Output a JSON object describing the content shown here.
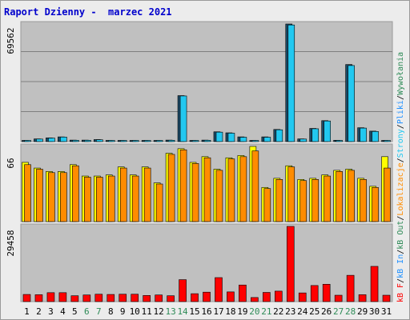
{
  "title": "Raport Dzienny -  marzec 2021",
  "chart_data": [
    {
      "type": "bar",
      "panel": "top",
      "ytick": "69562",
      "ylim": [
        0,
        69562
      ],
      "categories": [
        "1",
        "2",
        "3",
        "4",
        "5",
        "6",
        "7",
        "8",
        "9",
        "10",
        "11",
        "12",
        "13",
        "14",
        "15",
        "16",
        "17",
        "18",
        "19",
        "20",
        "21",
        "22",
        "23",
        "24",
        "25",
        "26",
        "27",
        "28",
        "29",
        "30",
        "31"
      ],
      "category_colors": [
        "#000000",
        "#000000",
        "#000000",
        "#000000",
        "#000000",
        "#2e8b57",
        "#2e8b57",
        "#000000",
        "#000000",
        "#000000",
        "#000000",
        "#000000",
        "#2e8b57",
        "#2e8b57",
        "#000000",
        "#000000",
        "#000000",
        "#000000",
        "#000000",
        "#2e8b57",
        "#2e8b57",
        "#000000",
        "#000000",
        "#000000",
        "#000000",
        "#000000",
        "#2e8b57",
        "#2e8b57",
        "#000000",
        "#000000",
        "#000000"
      ],
      "series": [
        {
          "name": "Wywołania",
          "color": "#1a4a66",
          "values": [
            600,
            1600,
            2200,
            2800,
            900,
            900,
            1200,
            500,
            500,
            500,
            500,
            600,
            900,
            27200,
            600,
            900,
            5800,
            5200,
            2800,
            600,
            2800,
            7200,
            69562,
            1600,
            7800,
            12400,
            800,
            45600,
            8200,
            6200,
            600
          ]
        },
        {
          "name": "Strony",
          "color": "#22c8f0",
          "values": [
            500,
            1500,
            2100,
            2700,
            800,
            800,
            1100,
            400,
            400,
            400,
            400,
            500,
            800,
            27000,
            500,
            800,
            5600,
            5000,
            2600,
            500,
            2600,
            7000,
            69000,
            1500,
            7600,
            12200,
            700,
            45000,
            8000,
            6000,
            500
          ]
        }
      ]
    },
    {
      "type": "bar",
      "panel": "middle",
      "ytick": "66",
      "ylim": [
        0,
        66
      ],
      "series": [
        {
          "name": "Pliki",
          "color": "#ffff00",
          "values": [
            52,
            47,
            44,
            44,
            50,
            40,
            40,
            41,
            48,
            41,
            48,
            34,
            60,
            64,
            52,
            57,
            46,
            56,
            58,
            66,
            30,
            38,
            49,
            37,
            38,
            41,
            45,
            46,
            38,
            31,
            57
          ]
        },
        {
          "name": "Lokalizacja",
          "color": "#ff8c00",
          "values": [
            50,
            46,
            43,
            43,
            49,
            39,
            39,
            40,
            47,
            40,
            47,
            33,
            59,
            63,
            51,
            56,
            45,
            55,
            57,
            62,
            29,
            37,
            48,
            36,
            37,
            40,
            44,
            45,
            37,
            30,
            47
          ]
        }
      ]
    },
    {
      "type": "bar",
      "panel": "bottom",
      "ytick": "29458",
      "ylim": [
        0,
        29458
      ],
      "series": [
        {
          "name": "kB F",
          "color": "#ff0000",
          "values": [
            2800,
            2700,
            3500,
            3500,
            2300,
            2600,
            2900,
            2800,
            2900,
            2900,
            2400,
            2600,
            2300,
            8600,
            3100,
            3700,
            9400,
            3800,
            6500,
            1600,
            3600,
            4100,
            29458,
            3400,
            6300,
            6800,
            2500,
            10300,
            2700,
            13800,
            2500
          ]
        }
      ]
    }
  ],
  "right_labels": [
    {
      "text": "kB F",
      "color": "#ff0000"
    },
    {
      "text": "/",
      "color": "#000000"
    },
    {
      "text": "kB In",
      "color": "#1e90ff"
    },
    {
      "text": "/",
      "color": "#000000"
    },
    {
      "text": "kB Out",
      "color": "#2e8b57"
    },
    {
      "text": "/",
      "color": "#000000"
    },
    {
      "text": "Lokalizacje",
      "color": "#ff8c00"
    },
    {
      "text": "/",
      "color": "#000000"
    },
    {
      "text": "Strony",
      "color": "#22c8f0"
    },
    {
      "text": "/",
      "color": "#000000"
    },
    {
      "text": "Pliki",
      "color": "#1e90ff"
    },
    {
      "text": "/",
      "color": "#000000"
    },
    {
      "text": "Wywołania",
      "color": "#2e8b57"
    }
  ]
}
